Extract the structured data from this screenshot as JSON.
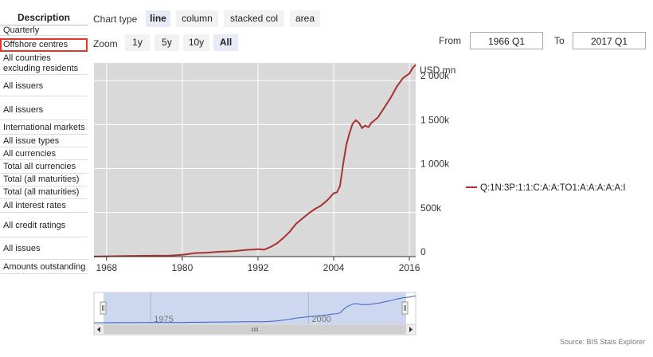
{
  "sidebar": {
    "header": "Description",
    "items": [
      {
        "label": "Quarterly",
        "selected": false
      },
      {
        "label": "Offshore centres",
        "selected": true
      },
      {
        "label": "All countries excluding residents",
        "selected": false
      },
      {
        "label": "All issuers",
        "selected": false
      },
      {
        "label": "All issuers",
        "selected": false
      },
      {
        "label": "International markets",
        "selected": false
      },
      {
        "label": "All issue types",
        "selected": false
      },
      {
        "label": "All currencies",
        "selected": false
      },
      {
        "label": "Total all currencies",
        "selected": false
      },
      {
        "label": "Total (all maturities)",
        "selected": false
      },
      {
        "label": "Total (all maturities)",
        "selected": false
      },
      {
        "label": "All interest rates",
        "selected": false
      },
      {
        "label": "All credit ratings",
        "selected": false
      },
      {
        "label": "All issues",
        "selected": false
      },
      {
        "label": "Amounts outstanding",
        "selected": false
      }
    ]
  },
  "toolbar": {
    "chart_type_label": "Chart type",
    "chart_types": [
      "line",
      "column",
      "stacked col",
      "area"
    ],
    "active_chart_type": "line",
    "zoom_label": "Zoom",
    "zoom_options": [
      "1y",
      "5y",
      "10y",
      "All"
    ],
    "active_zoom": "All",
    "from_label": "From",
    "from_value": "1966 Q1",
    "to_label": "To",
    "to_value": "2017 Q1"
  },
  "source": "Source: BIS Stats Explorer",
  "colors": {
    "series": "#a8322d",
    "plot_bg": "#d9d9d9",
    "navigator_fill": "#c9d3ee",
    "navigator_line": "#3a62c0"
  },
  "chart_data": {
    "type": "line",
    "title": "",
    "ylabel": "USD mn",
    "xlim": [
      1966,
      2017
    ],
    "ylim": [
      0,
      2200000
    ],
    "x_ticks": [
      1968,
      1980,
      1992,
      2004,
      2016
    ],
    "y_ticks": [
      0,
      500000,
      1000000,
      1500000,
      2000000
    ],
    "y_tick_labels": [
      "0",
      "500k",
      "1 000k",
      "1 500k",
      "2 000k"
    ],
    "grid": true,
    "legend": "right",
    "navigator_ticks": [
      1975,
      2000
    ],
    "series": [
      {
        "name": "Q:1N:3P:1:1:C:A:A:TO1:A:A:A:A:A:I",
        "x": [
          1966,
          1970,
          1975,
          1978,
          1980,
          1981,
          1982,
          1984,
          1986,
          1988,
          1990,
          1992,
          1993,
          1994,
          1995,
          1996,
          1997,
          1998,
          1999,
          2000,
          2001,
          2002,
          2003,
          2004,
          2004.5,
          2005,
          2005.5,
          2006,
          2006.5,
          2007,
          2007.5,
          2008,
          2008.5,
          2009,
          2009.5,
          2010,
          2011,
          2012,
          2013,
          2014,
          2015,
          2016,
          2016.5,
          2017
        ],
        "y": [
          1000,
          5000,
          10000,
          12000,
          20000,
          30000,
          40000,
          45000,
          55000,
          62000,
          75000,
          85000,
          80000,
          110000,
          150000,
          210000,
          280000,
          370000,
          430000,
          490000,
          540000,
          580000,
          640000,
          720000,
          730000,
          800000,
          1050000,
          1270000,
          1400000,
          1510000,
          1550000,
          1520000,
          1460000,
          1490000,
          1470000,
          1520000,
          1580000,
          1690000,
          1800000,
          1930000,
          2030000,
          2080000,
          2140000,
          2180000
        ]
      }
    ]
  }
}
